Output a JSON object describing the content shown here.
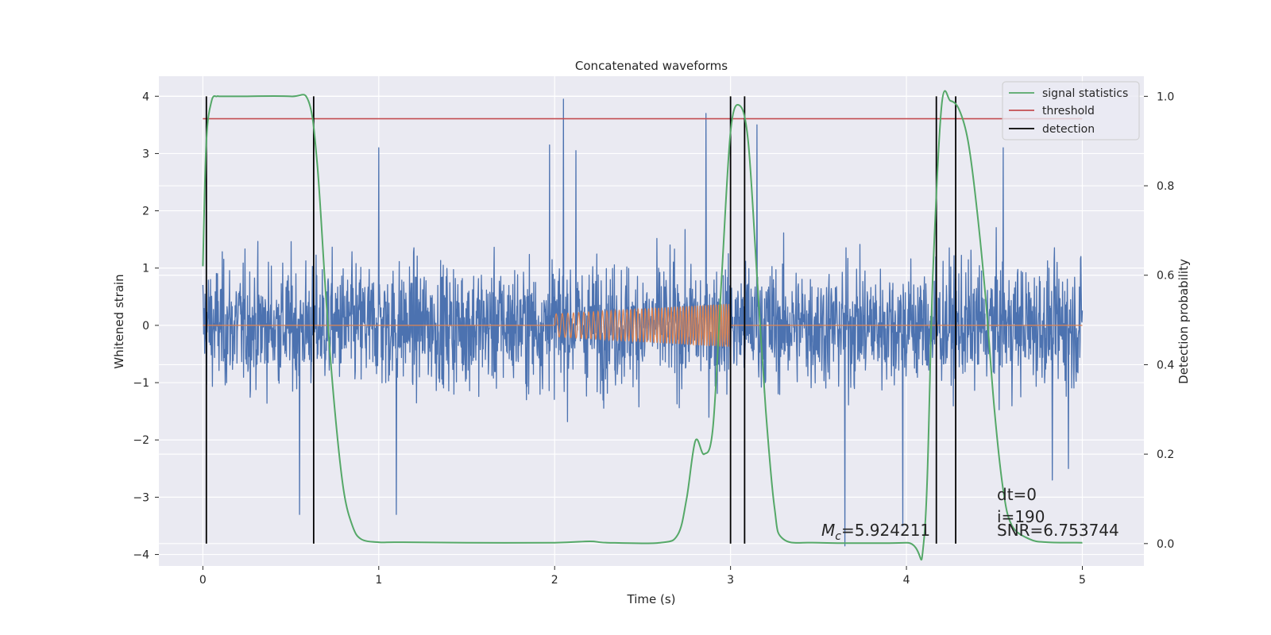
{
  "chart_data": {
    "type": "line",
    "title": "Concatenated waveforms",
    "xlabel": "Time (s)",
    "ylabel": "Whitened strain",
    "y2label": "Detection probability",
    "xlim": [
      -0.25,
      5.35
    ],
    "ylim": [
      -4.2,
      4.35
    ],
    "y2lim": [
      -0.05,
      1.045
    ],
    "xticks": [
      0,
      1,
      2,
      3,
      4,
      5
    ],
    "yticks": [
      -4,
      -3,
      -2,
      -1,
      0,
      1,
      2,
      3,
      4
    ],
    "y2ticks": [
      0.0,
      0.2,
      0.4,
      0.6,
      0.8,
      1.0
    ],
    "grid": true,
    "colors": {
      "strain": "#4c72b0",
      "template": "#dd8452",
      "signal_statistics": "#55a868",
      "threshold": "#c44e52",
      "detection": "#000000",
      "background": "#eaeaf2",
      "grid": "#ffffff"
    },
    "series": {
      "strain": {
        "x_range": [
          0,
          5
        ],
        "envelope_abs": 2.3,
        "peaks": [
          {
            "x": 2.05,
            "y": 3.95
          },
          {
            "x": 2.86,
            "y": 3.7
          },
          {
            "x": 3.15,
            "y": 3.5
          },
          {
            "x": 2.12,
            "y": 3.05
          },
          {
            "x": 1.97,
            "y": 3.15
          },
          {
            "x": 1.0,
            "y": 3.1
          },
          {
            "x": 4.55,
            "y": 3.1
          },
          {
            "x": 3.65,
            "y": -3.85
          },
          {
            "x": 3.98,
            "y": -3.5
          },
          {
            "x": 1.1,
            "y": -3.3
          },
          {
            "x": 0.55,
            "y": -3.3
          },
          {
            "x": 4.83,
            "y": -2.7
          },
          {
            "x": 4.92,
            "y": -2.5
          }
        ]
      },
      "template": {
        "flat_y": 0,
        "chirp_start": 2.0,
        "chirp_end": 3.0,
        "amplitude_start": 0.2,
        "amplitude_end": 0.38
      },
      "signal_statistics": {
        "name": "signal statistics",
        "x": [
          0,
          0.02,
          0.05,
          0.08,
          0.1,
          0.2,
          0.5,
          0.6,
          0.65,
          0.7,
          0.75,
          0.8,
          0.85,
          0.9,
          1.0,
          1.1,
          1.5,
          2.0,
          2.2,
          2.3,
          2.6,
          2.7,
          2.75,
          2.8,
          2.85,
          2.9,
          2.95,
          3.0,
          3.05,
          3.1,
          3.15,
          3.2,
          3.25,
          3.3,
          3.5,
          4.0,
          4.1,
          4.15,
          4.2,
          4.25,
          4.3,
          4.35,
          4.4,
          4.45,
          4.5,
          4.55,
          4.6,
          4.7,
          4.8,
          5.0
        ],
        "y": [
          0.62,
          0.9,
          0.99,
          1.0,
          1.0,
          1.0,
          1.0,
          0.99,
          0.85,
          0.55,
          0.3,
          0.12,
          0.04,
          0.01,
          0.003,
          0.003,
          0.002,
          0.002,
          0.005,
          0.002,
          0.002,
          0.02,
          0.1,
          0.23,
          0.2,
          0.26,
          0.6,
          0.92,
          0.98,
          0.9,
          0.6,
          0.3,
          0.08,
          0.01,
          0.002,
          0.002,
          0.01,
          0.6,
          0.98,
          0.99,
          0.97,
          0.9,
          0.75,
          0.55,
          0.3,
          0.12,
          0.04,
          0.01,
          0.003,
          0.002
        ]
      },
      "threshold": {
        "name": "threshold",
        "y": 0.95,
        "x_range": [
          0,
          5
        ]
      },
      "detection": {
        "name": "detection",
        "x": [
          0.02,
          0.63,
          3.0,
          3.08,
          4.17,
          4.28
        ]
      }
    },
    "annotations": {
      "mc_symbol": "M",
      "mc_sub": "c",
      "mc_value": "=5.924211",
      "dt": "dt=0",
      "i": "i=190",
      "snr": "SNR=6.753744"
    },
    "legend": {
      "placement": "top-right",
      "entries": [
        "signal statistics",
        "threshold",
        "detection"
      ]
    }
  }
}
